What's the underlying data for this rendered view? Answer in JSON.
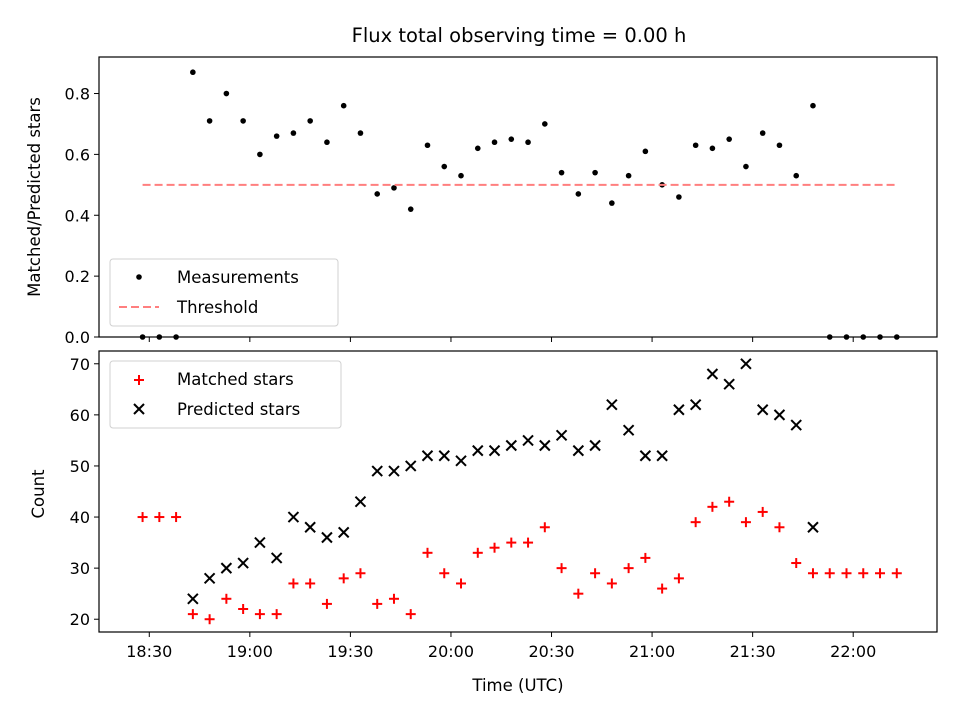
{
  "chart_data": [
    {
      "type": "scatter",
      "title": "Flux total observing time = 0.00 h",
      "xlabel": "",
      "ylabel": "Matched/Predicted stars",
      "xlim": [
        "18:15",
        "22:25"
      ],
      "ylim": [
        0,
        0.92
      ],
      "yticks": [
        "0.0",
        "0.2",
        "0.4",
        "0.6",
        "0.8"
      ],
      "grid": false,
      "legend": {
        "position": "lower-left",
        "entries": [
          "Measurements",
          "Threshold"
        ]
      },
      "series": [
        {
          "name": "Measurements",
          "marker": "dot",
          "color": "#000000",
          "points": [
            [
              "18:28",
              0.0
            ],
            [
              "18:33",
              0.0
            ],
            [
              "18:38",
              0.0
            ],
            [
              "18:43",
              0.87
            ],
            [
              "18:48",
              0.71
            ],
            [
              "18:53",
              0.8
            ],
            [
              "18:58",
              0.71
            ],
            [
              "19:03",
              0.6
            ],
            [
              "19:08",
              0.66
            ],
            [
              "19:13",
              0.67
            ],
            [
              "19:18",
              0.71
            ],
            [
              "19:23",
              0.64
            ],
            [
              "19:28",
              0.76
            ],
            [
              "19:33",
              0.67
            ],
            [
              "19:38",
              0.47
            ],
            [
              "19:43",
              0.49
            ],
            [
              "19:48",
              0.42
            ],
            [
              "19:53",
              0.63
            ],
            [
              "19:58",
              0.56
            ],
            [
              "20:03",
              0.53
            ],
            [
              "20:08",
              0.62
            ],
            [
              "20:13",
              0.64
            ],
            [
              "20:18",
              0.65
            ],
            [
              "20:23",
              0.64
            ],
            [
              "20:28",
              0.7
            ],
            [
              "20:33",
              0.54
            ],
            [
              "20:38",
              0.47
            ],
            [
              "20:43",
              0.54
            ],
            [
              "20:48",
              0.44
            ],
            [
              "20:53",
              0.53
            ],
            [
              "20:58",
              0.61
            ],
            [
              "21:03",
              0.5
            ],
            [
              "21:08",
              0.46
            ],
            [
              "21:13",
              0.63
            ],
            [
              "21:18",
              0.62
            ],
            [
              "21:23",
              0.65
            ],
            [
              "21:28",
              0.56
            ],
            [
              "21:33",
              0.67
            ],
            [
              "21:38",
              0.63
            ],
            [
              "21:43",
              0.53
            ],
            [
              "21:48",
              0.76
            ],
            [
              "21:53",
              0.0
            ],
            [
              "21:58",
              0.0
            ],
            [
              "22:03",
              0.0
            ],
            [
              "22:08",
              0.0
            ],
            [
              "22:13",
              0.0
            ]
          ]
        },
        {
          "name": "Threshold",
          "style": "dashed-line",
          "color": "#ff7f7f",
          "points": [
            [
              "18:28",
              0.5
            ],
            [
              "22:13",
              0.5
            ]
          ]
        }
      ]
    },
    {
      "type": "scatter",
      "title": "",
      "xlabel": "Time (UTC)",
      "ylabel": "Count",
      "xlim": [
        "18:15",
        "22:25"
      ],
      "ylim": [
        17.5,
        72.5
      ],
      "xticks": [
        "18:30",
        "19:00",
        "19:30",
        "20:00",
        "20:30",
        "21:00",
        "21:30",
        "22:00"
      ],
      "yticks": [
        "20",
        "30",
        "40",
        "50",
        "60",
        "70"
      ],
      "grid": false,
      "legend": {
        "position": "upper-left",
        "entries": [
          "Matched stars",
          "Predicted stars"
        ]
      },
      "series": [
        {
          "name": "Matched stars",
          "marker": "plus",
          "color": "#ff0000",
          "points": [
            [
              "18:28",
              40
            ],
            [
              "18:33",
              40
            ],
            [
              "18:38",
              40
            ],
            [
              "18:43",
              21
            ],
            [
              "18:48",
              20
            ],
            [
              "18:53",
              24
            ],
            [
              "18:58",
              22
            ],
            [
              "19:03",
              21
            ],
            [
              "19:08",
              21
            ],
            [
              "19:13",
              27
            ],
            [
              "19:18",
              27
            ],
            [
              "19:23",
              23
            ],
            [
              "19:28",
              28
            ],
            [
              "19:33",
              29
            ],
            [
              "19:38",
              23
            ],
            [
              "19:43",
              24
            ],
            [
              "19:48",
              21
            ],
            [
              "19:53",
              33
            ],
            [
              "19:58",
              29
            ],
            [
              "20:03",
              27
            ],
            [
              "20:08",
              33
            ],
            [
              "20:13",
              34
            ],
            [
              "20:18",
              35
            ],
            [
              "20:23",
              35
            ],
            [
              "20:28",
              38
            ],
            [
              "20:33",
              30
            ],
            [
              "20:38",
              25
            ],
            [
              "20:43",
              29
            ],
            [
              "20:48",
              27
            ],
            [
              "20:53",
              30
            ],
            [
              "20:58",
              32
            ],
            [
              "21:03",
              26
            ],
            [
              "21:08",
              28
            ],
            [
              "21:13",
              39
            ],
            [
              "21:18",
              42
            ],
            [
              "21:23",
              43
            ],
            [
              "21:28",
              39
            ],
            [
              "21:33",
              41
            ],
            [
              "21:38",
              38
            ],
            [
              "21:43",
              31
            ],
            [
              "21:48",
              29
            ],
            [
              "21:53",
              29
            ],
            [
              "21:58",
              29
            ],
            [
              "22:03",
              29
            ],
            [
              "22:08",
              29
            ],
            [
              "22:13",
              29
            ]
          ]
        },
        {
          "name": "Predicted stars",
          "marker": "x",
          "color": "#000000",
          "points": [
            [
              "18:43",
              24
            ],
            [
              "18:48",
              28
            ],
            [
              "18:53",
              30
            ],
            [
              "18:58",
              31
            ],
            [
              "19:03",
              35
            ],
            [
              "19:08",
              32
            ],
            [
              "19:13",
              40
            ],
            [
              "19:18",
              38
            ],
            [
              "19:23",
              36
            ],
            [
              "19:28",
              37
            ],
            [
              "19:33",
              43
            ],
            [
              "19:38",
              49
            ],
            [
              "19:43",
              49
            ],
            [
              "19:48",
              50
            ],
            [
              "19:53",
              52
            ],
            [
              "19:58",
              52
            ],
            [
              "20:03",
              51
            ],
            [
              "20:08",
              53
            ],
            [
              "20:13",
              53
            ],
            [
              "20:18",
              54
            ],
            [
              "20:23",
              55
            ],
            [
              "20:28",
              54
            ],
            [
              "20:33",
              56
            ],
            [
              "20:38",
              53
            ],
            [
              "20:43",
              54
            ],
            [
              "20:48",
              62
            ],
            [
              "20:53",
              57
            ],
            [
              "20:58",
              52
            ],
            [
              "21:03",
              52
            ],
            [
              "21:08",
              61
            ],
            [
              "21:13",
              62
            ],
            [
              "21:18",
              68
            ],
            [
              "21:23",
              66
            ],
            [
              "21:28",
              70
            ],
            [
              "21:33",
              61
            ],
            [
              "21:38",
              60
            ],
            [
              "21:43",
              58
            ],
            [
              "21:48",
              38
            ]
          ]
        }
      ]
    }
  ]
}
